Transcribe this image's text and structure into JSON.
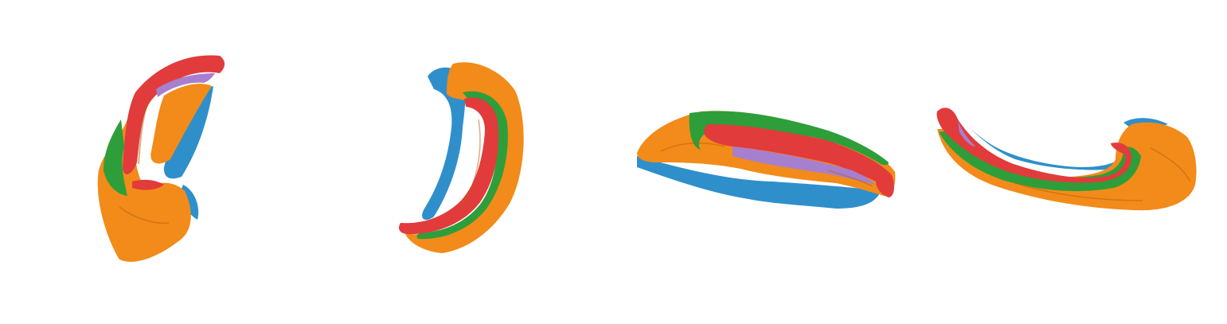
{
  "colors": {
    "background": "#ffffff",
    "region_a": "#f28b1a",
    "region_b": "#2f8fcb",
    "region_c": "#e23b3b",
    "region_d": "#2e9e3a",
    "region_e": "#a67fce",
    "shade": "#b45f08"
  },
  "views": [
    {
      "id": "view-1",
      "shape": "crescent-upright"
    },
    {
      "id": "view-2",
      "shape": "crescent-mirrored"
    },
    {
      "id": "view-3",
      "shape": "elongated-horizontal"
    },
    {
      "id": "view-4",
      "shape": "hooked-horizontal"
    }
  ]
}
